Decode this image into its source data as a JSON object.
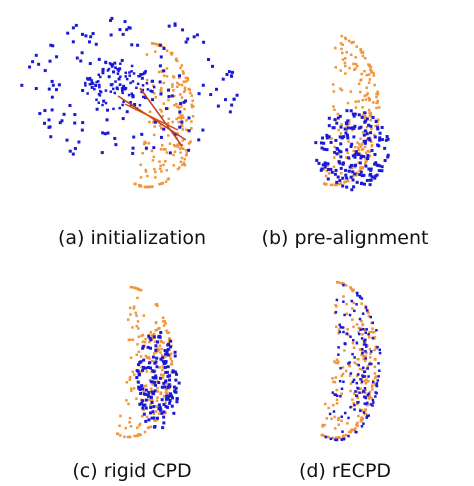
{
  "panels": [
    {
      "caption": "(a) initialization"
    },
    {
      "caption": "(b) pre-alignment"
    },
    {
      "caption": "(c) rigid CPD"
    },
    {
      "caption": "(d) rECPD"
    }
  ]
}
